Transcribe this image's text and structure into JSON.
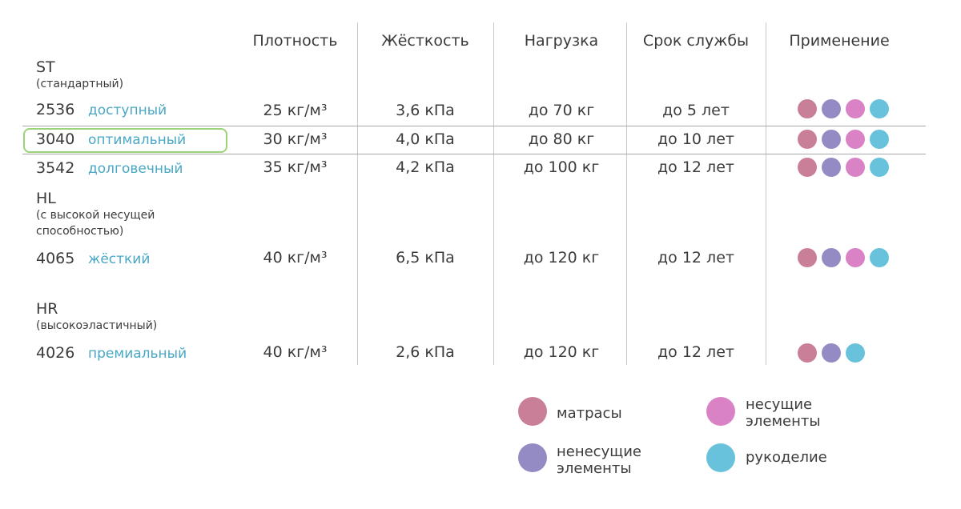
{
  "headers": {
    "density": "Плотность",
    "stiffness": "Жёсткость",
    "load": "Нагрузка",
    "lifetime": "Срок службы",
    "application": "Применение"
  },
  "groups": [
    {
      "name": "ST",
      "desc": "(стандартный)"
    },
    {
      "name": "HL",
      "desc": "(с высокой несущей способностью)"
    },
    {
      "name": "HR",
      "desc": "(высокоэластичный)"
    }
  ],
  "rows": [
    {
      "code": "2536",
      "tier": "доступный",
      "density": "25 кг/м³",
      "stiffness": "3,6 кПа",
      "load": "до 70 кг",
      "lifetime": "до 5 лет",
      "applications": [
        "mattress",
        "non-load",
        "load",
        "crafts"
      ],
      "highlighted": false
    },
    {
      "code": "3040",
      "tier": "оптимальный",
      "density": "30 кг/м³",
      "stiffness": "4,0 кПа",
      "load": "до 80 кг",
      "lifetime": "до 10 лет",
      "applications": [
        "mattress",
        "non-load",
        "load",
        "crafts"
      ],
      "highlighted": true
    },
    {
      "code": "3542",
      "tier": "долговечный",
      "density": "35 кг/м³",
      "stiffness": "4,2 кПа",
      "load": "до 100 кг",
      "lifetime": "до 12 лет",
      "applications": [
        "mattress",
        "non-load",
        "load",
        "crafts"
      ],
      "highlighted": false
    },
    {
      "code": "4065",
      "tier": "жёсткий",
      "density": "40 кг/м³",
      "stiffness": "6,5 кПа",
      "load": "до 120 кг",
      "lifetime": "до 12 лет",
      "applications": [
        "mattress",
        "non-load",
        "load",
        "crafts"
      ],
      "highlighted": false
    },
    {
      "code": "4026",
      "tier": "премиальный",
      "density": "40 кг/м³",
      "stiffness": "2,6 кПа",
      "load": "до 120 кг",
      "lifetime": "до 12 лет",
      "applications": [
        "mattress",
        "non-load",
        "crafts"
      ],
      "highlighted": false
    }
  ],
  "legend": [
    {
      "key": "mattress",
      "label": "матрасы",
      "color": "#c97f98"
    },
    {
      "key": "load",
      "label": "несущие элементы",
      "color": "#d982c5"
    },
    {
      "key": "non-load",
      "label": "ненесущие элементы",
      "color": "#958bc4"
    },
    {
      "key": "crafts",
      "label": "рукоделие",
      "color": "#69c2dc"
    }
  ]
}
